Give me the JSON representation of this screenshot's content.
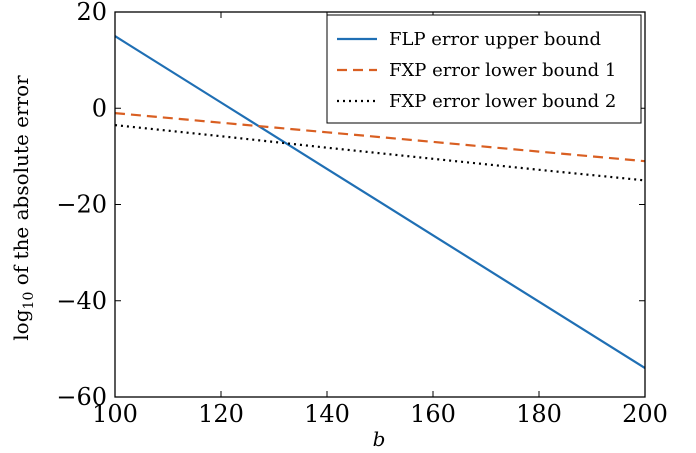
{
  "chart_data": {
    "type": "line",
    "xlabel": "b",
    "ylabel": "log",
    "ylabel_sub": "10",
    "ylabel_rest": " of the absolute error",
    "xlim": [
      100,
      200
    ],
    "ylim": [
      -60,
      20
    ],
    "xticks": [
      100,
      120,
      140,
      160,
      180,
      200
    ],
    "yticks": [
      -60,
      -40,
      -20,
      0,
      20
    ],
    "xtick_labels": [
      "100",
      "120",
      "140",
      "160",
      "180",
      "200"
    ],
    "ytick_labels": [
      "−60",
      "−40",
      "−20",
      "0",
      "20"
    ],
    "grid": false,
    "legend_position": "top-right",
    "series": [
      {
        "name": "FLP error upper bound",
        "color": "#1f6fb4",
        "style": "solid",
        "x": [
          100,
          120,
          140,
          160,
          180,
          200
        ],
        "y": [
          15,
          1.2,
          -12.6,
          -26.4,
          -40.2,
          -54
        ]
      },
      {
        "name": "FXP error lower bound 1",
        "color": "#d95f22",
        "style": "dashed",
        "x": [
          100,
          120,
          140,
          160,
          180,
          200
        ],
        "y": [
          -1,
          -3,
          -5,
          -7,
          -9,
          -11
        ]
      },
      {
        "name": "FXP error lower bound 2",
        "color": "#000000",
        "style": "dotted",
        "x": [
          100,
          120,
          140,
          160,
          180,
          200
        ],
        "y": [
          -3.5,
          -5.8,
          -8.2,
          -10.5,
          -12.8,
          -15
        ]
      }
    ]
  }
}
